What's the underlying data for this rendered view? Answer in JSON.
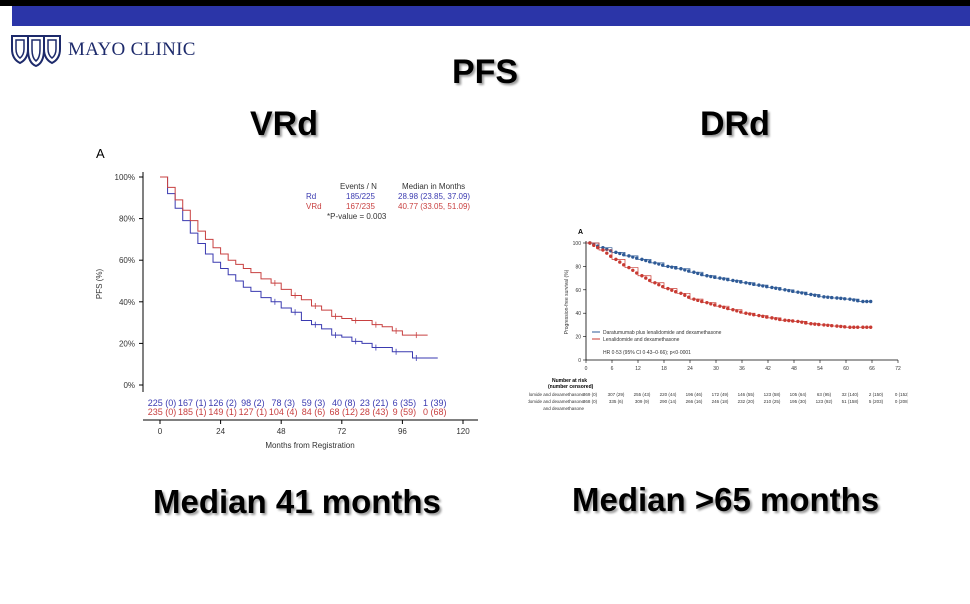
{
  "header": {
    "logo_text": "MAYO CLINIC",
    "bar_color": "#2b35a8"
  },
  "slide": {
    "title": "PFS",
    "left_heading": "VRd",
    "right_heading": "DRd",
    "left_median": "Median 41 months",
    "right_median": "Median >65 months"
  },
  "chart_data": [
    {
      "type": "line",
      "panel_label": "A",
      "xlabel": "Months from Registration",
      "ylabel": "PFS (%)",
      "xlim": [
        0,
        120
      ],
      "ylim": [
        0,
        100
      ],
      "x_ticks": [
        "0",
        "24",
        "48",
        "72",
        "96",
        "120"
      ],
      "y_ticks": [
        "0%",
        "20%",
        "40%",
        "60%",
        "80%",
        "100%"
      ],
      "legend": {
        "col_events": "Events / N",
        "col_median": "Median in Months",
        "pvalue": "*P-value = 0.003"
      },
      "series": [
        {
          "name": "Rd",
          "color": "#3a3ab0",
          "events": "185/225",
          "median": "28.98 (23.85, 37.09)",
          "x": [
            0,
            3,
            6,
            9,
            12,
            15,
            18,
            21,
            24,
            27,
            30,
            33,
            36,
            40,
            44,
            48,
            52,
            56,
            60,
            64,
            68,
            72,
            76,
            80,
            84,
            88,
            92,
            96,
            100,
            104,
            110
          ],
          "y": [
            100,
            92,
            85,
            79,
            73,
            68,
            63,
            59,
            56,
            53,
            50,
            47,
            45,
            42,
            40,
            37,
            35,
            31,
            29,
            27,
            24,
            23,
            21,
            20,
            18,
            18,
            16,
            16,
            13,
            13,
            13
          ]
        },
        {
          "name": "VRd",
          "color": "#c84040",
          "events": "167/235",
          "median": "40.77 (33.05, 51.09)",
          "x": [
            0,
            3,
            6,
            9,
            12,
            15,
            18,
            21,
            24,
            27,
            30,
            33,
            36,
            40,
            44,
            48,
            52,
            56,
            60,
            64,
            68,
            72,
            76,
            80,
            84,
            88,
            92,
            96,
            100,
            104,
            106
          ],
          "y": [
            100,
            95,
            89,
            84,
            79,
            74,
            70,
            66,
            63,
            60,
            58,
            56,
            54,
            51,
            49,
            46,
            43,
            41,
            38,
            36,
            33,
            32,
            31,
            31,
            29,
            28,
            26,
            24,
            24,
            24,
            24
          ]
        }
      ],
      "at_risk": [
        {
          "name": "Rd",
          "values": [
            "225 (0)",
            "167 (1)",
            "126 (2)",
            "98 (2)",
            "78 (3)",
            "59 (3)",
            "40 (8)",
            "23 (21)",
            "6 (35)",
            "1 (39)"
          ]
        },
        {
          "name": "VRd",
          "values": [
            "235 (0)",
            "185 (1)",
            "149 (1)",
            "127 (1)",
            "104 (4)",
            "84 (6)",
            "68 (12)",
            "28 (43)",
            "9 (59)",
            "0 (68)"
          ]
        }
      ]
    },
    {
      "type": "line",
      "panel_label": "A",
      "ylabel": "Progression-free survival (%)",
      "xlim": [
        0,
        72
      ],
      "ylim": [
        0,
        100
      ],
      "x_ticks": [
        "0",
        "6",
        "12",
        "18",
        "24",
        "30",
        "36",
        "42",
        "48",
        "54",
        "60",
        "66",
        "72"
      ],
      "y_ticks": [
        "0",
        "20",
        "40",
        "60",
        "80",
        "100"
      ],
      "legend": [
        "Daratumumab plus lenalidomide and dexamethasone",
        "Lenalidomide and dexamethasone"
      ],
      "hr_text": "HR 0·53 (95% CI 0·43–0·66); p<0·0001",
      "series": [
        {
          "name": "Daratumumab plus lenalidomide and dexamethasone",
          "color": "#2e5a96",
          "x": [
            0,
            3,
            6,
            9,
            12,
            15,
            18,
            21,
            24,
            27,
            30,
            33,
            36,
            39,
            42,
            45,
            48,
            51,
            54,
            57,
            60,
            63,
            66
          ],
          "y": [
            100,
            96,
            92,
            89,
            86,
            83,
            80,
            78,
            75,
            72,
            70,
            68,
            66,
            64,
            62,
            60,
            58,
            56,
            54,
            53,
            52,
            50,
            50
          ]
        },
        {
          "name": "Lenalidomide and dexamethasone",
          "color": "#c83a32",
          "x": [
            0,
            3,
            6,
            9,
            12,
            15,
            18,
            21,
            24,
            27,
            30,
            33,
            36,
            39,
            42,
            45,
            48,
            51,
            54,
            57,
            60,
            63,
            66
          ],
          "y": [
            100,
            94,
            86,
            79,
            72,
            66,
            61,
            57,
            52,
            49,
            46,
            43,
            40,
            38,
            36,
            34,
            33,
            31,
            30,
            29,
            28,
            28,
            28
          ]
        }
      ],
      "at_risk_header": [
        "Number at risk",
        "(number censored)"
      ],
      "at_risk": [
        {
          "name": "Daratumumab plus lenalidomide and dexamethasone",
          "label": "tumumab plus lenalidomide and dexamethasone",
          "values": [
            "368 (0)",
            "335 (6)",
            "309 (9)",
            "290 (14)",
            "266 (16)",
            "246 (18)",
            "232 (20)",
            "210 (25)",
            "195 (30)",
            "123 (92)",
            "51 (158)",
            "5 (203)",
            "0 (208)"
          ]
        },
        {
          "name": "Lenalidomide and dexamethasone",
          "label": "lomide and dexamethasone",
          "values": [
            "369 (0)",
            "307 (29)",
            "255 (43)",
            "220 (44)",
            "196 (46)",
            "172 (49)",
            "146 (55)",
            "123 (58)",
            "105 (64)",
            "63 (95)",
            "32 (140)",
            "2 (150)",
            "0 (152)"
          ]
        }
      ]
    }
  ]
}
